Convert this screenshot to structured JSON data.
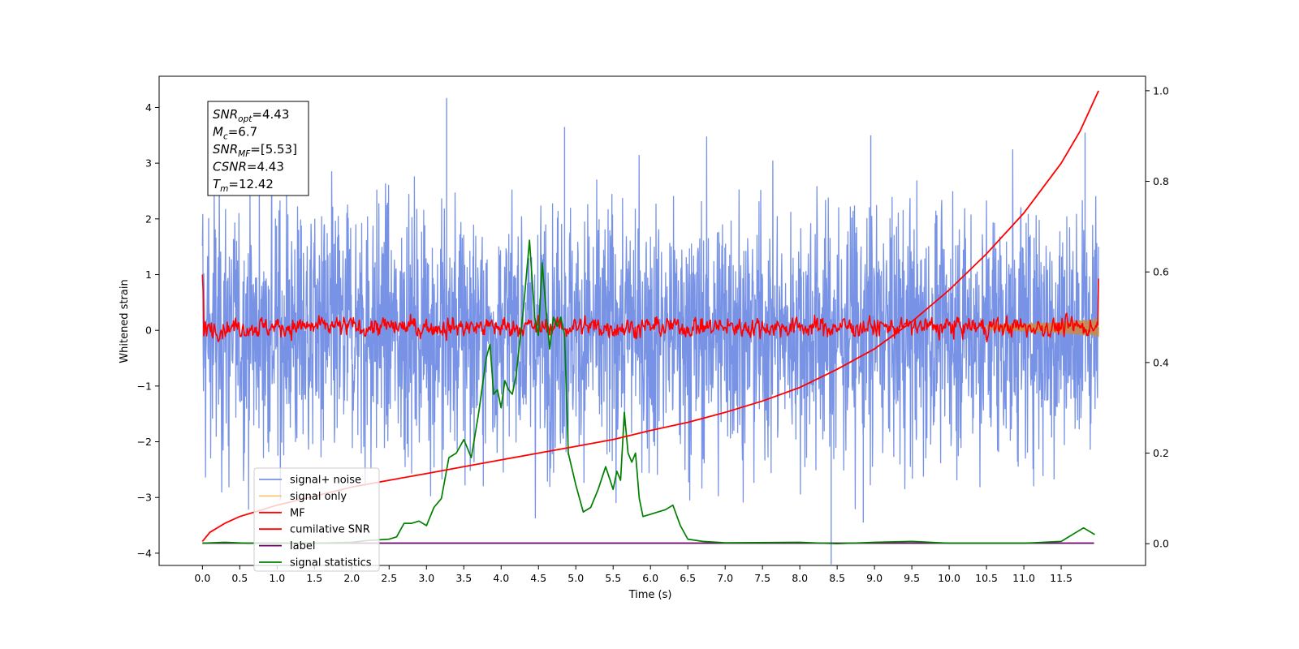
{
  "chart_data": {
    "type": "line",
    "title": "",
    "xlabel": "Time (s)",
    "ylabel": "Whitened strain",
    "y2label": "",
    "xlim": [
      -0.58,
      12.63
    ],
    "ylim": [
      -4.22,
      4.56
    ],
    "y2lim": [
      -0.048,
      1.032
    ],
    "xticks": [
      0.0,
      0.5,
      1.0,
      1.5,
      2.0,
      2.5,
      3.0,
      3.5,
      4.0,
      4.5,
      5.0,
      5.5,
      6.0,
      6.5,
      7.0,
      7.5,
      8.0,
      8.5,
      9.0,
      9.5,
      10.0,
      10.5,
      11.0,
      11.5
    ],
    "xtick_labels": [
      "0.0",
      "0.5",
      "1.0",
      "1.5",
      "2.0",
      "2.5",
      "3.0",
      "3.5",
      "4.0",
      "4.5",
      "5.0",
      "5.5",
      "6.0",
      "6.5",
      "7.0",
      "7.5",
      "8.0",
      "8.5",
      "9.0",
      "9.5",
      "10.0",
      "10.5",
      "11.0",
      "11.5"
    ],
    "yticks": [
      -4,
      -3,
      -2,
      -1,
      0,
      1,
      2,
      3,
      4
    ],
    "ytick_labels": [
      "−4",
      "−3",
      "−2",
      "−1",
      "0",
      "1",
      "2",
      "3",
      "4"
    ],
    "y2ticks": [
      0.0,
      0.2,
      0.4,
      0.6,
      0.8,
      1.0
    ],
    "y2tick_labels": [
      "0.0",
      "0.2",
      "0.4",
      "0.6",
      "0.8",
      "1.0"
    ],
    "grid": false,
    "legend_position": "lower-left",
    "annotation": {
      "lines": [
        {
          "base": "SNR",
          "sub": "opt",
          "value": "=4.43"
        },
        {
          "base": "M",
          "sub": "c",
          "value": "=6.7"
        },
        {
          "base": "SNR",
          "sub": "MF",
          "value": "=[5.53]"
        },
        {
          "base": "CSNR",
          "sub": "",
          "value": "=4.43"
        },
        {
          "base": "T",
          "sub": "m",
          "value": "=12.42"
        }
      ]
    },
    "colors": {
      "signal_noise": "#7893e6",
      "signal_only": "#f5c77a",
      "mf": "#ff0000",
      "cumulative_snr": "#ff0000",
      "label": "#6a006a",
      "signal_statistics": "#008000"
    },
    "series": [
      {
        "name": "signal+ noise",
        "axis": "left",
        "style": "noise_band",
        "x_range": [
          0.0,
          12.0
        ],
        "envelope_upper": 2.0,
        "envelope_lower": -2.3,
        "peaks": [
          [
            3.27,
            4.17
          ],
          [
            11.82,
            3.55
          ],
          [
            4.85,
            3.65
          ],
          [
            8.95,
            3.5
          ],
          [
            8.42,
            -4.2
          ],
          [
            8.85,
            -3.45
          ]
        ]
      },
      {
        "name": "signal only",
        "axis": "left",
        "style": "chirp",
        "x_range": [
          10.5,
          12.0
        ],
        "values_note": ""
      },
      {
        "name": "MF",
        "axis": "left",
        "style": "mf_noise",
        "x_range": [
          0.0,
          12.0
        ],
        "start_value": 1.0,
        "end_value": 0.93,
        "band": [
          -0.28,
          0.5
        ]
      },
      {
        "name": "cumilative SNR",
        "axis": "right",
        "x": [
          0.0,
          0.05,
          0.1,
          0.3,
          0.5,
          1.0,
          1.5,
          2.0,
          2.5,
          3.0,
          3.5,
          4.0,
          4.5,
          5.0,
          5.5,
          6.0,
          6.5,
          7.0,
          7.5,
          8.0,
          8.5,
          9.0,
          9.5,
          10.0,
          10.5,
          11.0,
          11.5,
          11.75,
          12.0
        ],
        "y": [
          0.005,
          0.015,
          0.025,
          0.045,
          0.06,
          0.085,
          0.105,
          0.125,
          0.14,
          0.155,
          0.17,
          0.185,
          0.2,
          0.215,
          0.23,
          0.25,
          0.268,
          0.29,
          0.315,
          0.345,
          0.385,
          0.43,
          0.49,
          0.56,
          0.64,
          0.73,
          0.84,
          0.91,
          1.0
        ]
      },
      {
        "name": "label",
        "axis": "left",
        "x": [
          0.0,
          11.94
        ],
        "y": [
          -3.82,
          -3.82
        ]
      },
      {
        "name": "signal statistics",
        "axis": "right",
        "x": [
          0.0,
          0.3,
          0.6,
          1.0,
          1.5,
          2.0,
          2.2,
          2.5,
          2.6,
          2.7,
          2.8,
          2.9,
          3.0,
          3.1,
          3.2,
          3.3,
          3.4,
          3.5,
          3.6,
          3.7,
          3.8,
          3.85,
          3.9,
          3.95,
          4.0,
          4.05,
          4.1,
          4.15,
          4.2,
          4.3,
          4.38,
          4.45,
          4.5,
          4.55,
          4.6,
          4.65,
          4.7,
          4.75,
          4.8,
          4.85,
          4.9,
          5.0,
          5.1,
          5.2,
          5.3,
          5.4,
          5.5,
          5.55,
          5.6,
          5.65,
          5.7,
          5.75,
          5.8,
          5.85,
          5.9,
          6.0,
          6.1,
          6.2,
          6.3,
          6.4,
          6.5,
          6.7,
          7.0,
          8.0,
          8.5,
          9.0,
          9.5,
          10.0,
          11.0,
          11.5,
          11.7,
          11.8,
          11.95
        ],
        "y": [
          0.001,
          0.003,
          0.001,
          0.001,
          0.001,
          0.003,
          0.007,
          0.01,
          0.015,
          0.045,
          0.045,
          0.05,
          0.04,
          0.08,
          0.1,
          0.19,
          0.2,
          0.23,
          0.19,
          0.29,
          0.41,
          0.44,
          0.33,
          0.34,
          0.3,
          0.36,
          0.34,
          0.33,
          0.37,
          0.52,
          0.67,
          0.5,
          0.46,
          0.62,
          0.52,
          0.43,
          0.5,
          0.48,
          0.5,
          0.46,
          0.2,
          0.13,
          0.07,
          0.08,
          0.12,
          0.17,
          0.12,
          0.16,
          0.14,
          0.29,
          0.2,
          0.18,
          0.2,
          0.1,
          0.06,
          0.065,
          0.07,
          0.075,
          0.085,
          0.04,
          0.01,
          0.005,
          0.002,
          0.003,
          0.0,
          0.003,
          0.005,
          0.001,
          0.001,
          0.005,
          0.025,
          0.035,
          0.02
        ]
      }
    ]
  }
}
